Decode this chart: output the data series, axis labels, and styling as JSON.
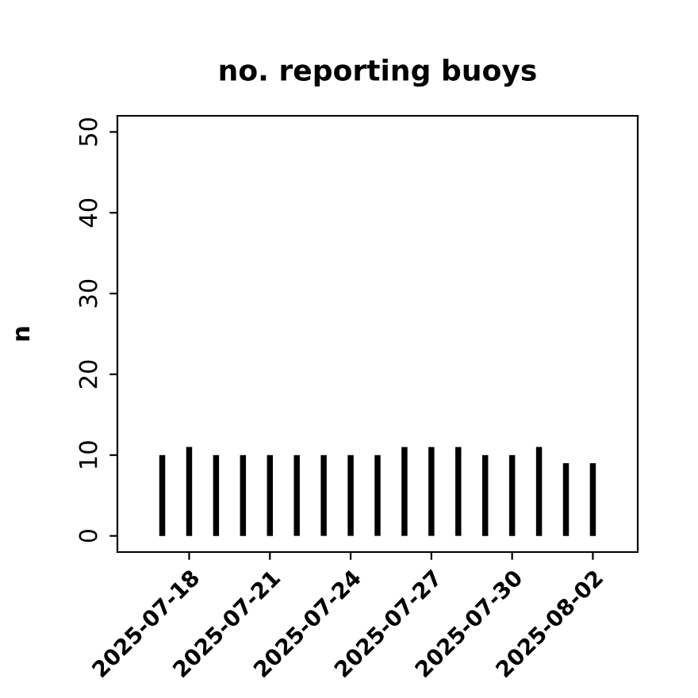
{
  "chart_data": {
    "type": "bar",
    "title": "no. reporting buoys",
    "ylabel": "n",
    "x": [
      "2025-07-17",
      "2025-07-18",
      "2025-07-19",
      "2025-07-20",
      "2025-07-21",
      "2025-07-22",
      "2025-07-23",
      "2025-07-24",
      "2025-07-25",
      "2025-07-26",
      "2025-07-27",
      "2025-07-28",
      "2025-07-29",
      "2025-07-30",
      "2025-07-31",
      "2025-08-01",
      "2025-08-02"
    ],
    "values": [
      10,
      11,
      10,
      10,
      10,
      10,
      10,
      10,
      10,
      11,
      11,
      11,
      10,
      10,
      11,
      9,
      9
    ],
    "color": "#000000",
    "xlim": [
      "2025-07-15T08:00",
      "2025-08-03T16:00"
    ],
    "xticks": [
      {
        "value": "2025-07-18",
        "label": "2025-07-18"
      },
      {
        "value": "2025-07-21",
        "label": "2025-07-21"
      },
      {
        "value": "2025-07-24",
        "label": "2025-07-24"
      },
      {
        "value": "2025-07-27",
        "label": "2025-07-27"
      },
      {
        "value": "2025-07-30",
        "label": "2025-07-30"
      },
      {
        "value": "2025-08-02",
        "label": "2025-08-02"
      }
    ],
    "ylim": [
      -2,
      52
    ],
    "yticks": [
      0,
      10,
      20,
      30,
      40,
      50
    ],
    "grid": false,
    "legend": false
  }
}
